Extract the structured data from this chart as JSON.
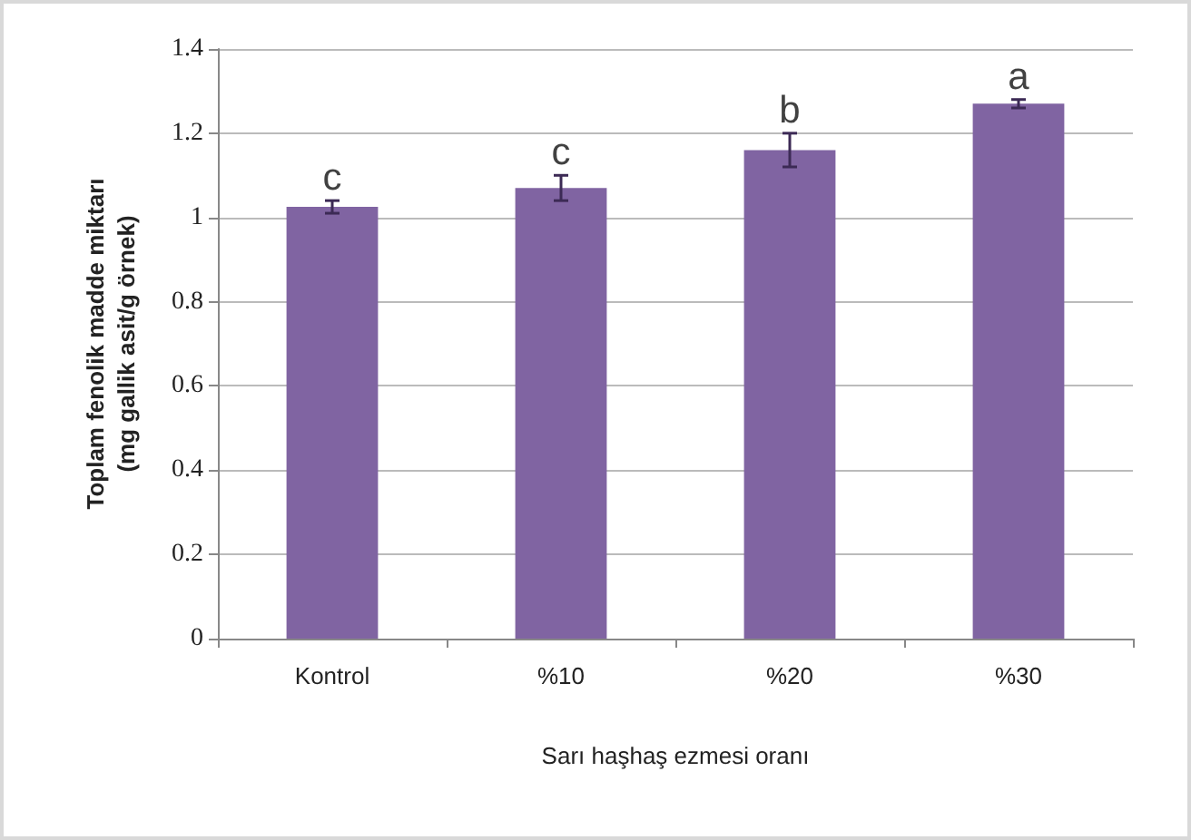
{
  "chart_data": {
    "type": "bar",
    "xlabel": "Sarı haşhaş ezmesi oranı",
    "ylabel": "Toplam fenolik madde miktarı\n(mg gallik asit/g örnek)",
    "categories": [
      "Kontrol",
      "%10",
      "%20",
      "%30"
    ],
    "values": [
      1.025,
      1.07,
      1.16,
      1.27
    ],
    "errors": [
      0.015,
      0.03,
      0.04,
      0.01
    ],
    "color": "#8064a2",
    "ylim": [
      0,
      1.4
    ],
    "yticks": [
      0,
      0.2,
      0.4,
      0.6,
      0.8,
      1,
      1.2,
      1.4
    ],
    "grid": "y",
    "annotations": [
      {
        "text": "c",
        "x": "Kontrol",
        "y": 1.04
      },
      {
        "text": "c",
        "x": "%10",
        "y": 1.1
      },
      {
        "text": "b",
        "x": "%20",
        "y": 1.2
      },
      {
        "text": "a",
        "x": "%30",
        "y": 1.28
      }
    ]
  }
}
